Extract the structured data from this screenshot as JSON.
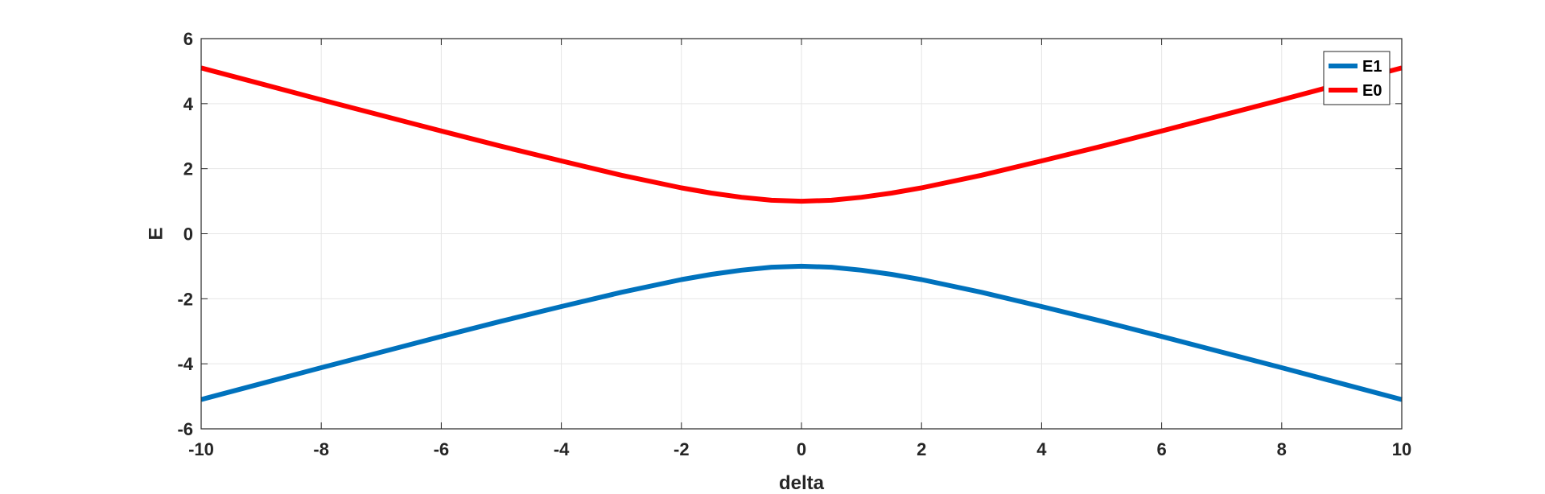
{
  "chart_data": {
    "type": "line",
    "xlabel": "delta",
    "ylabel": "E",
    "xlim": [
      -10,
      10
    ],
    "ylim": [
      -6,
      6
    ],
    "xticks": [
      -10,
      -8,
      -6,
      -4,
      -2,
      0,
      2,
      4,
      6,
      8,
      10
    ],
    "yticks": [
      -6,
      -4,
      -2,
      0,
      2,
      4,
      6
    ],
    "grid": true,
    "legend_position": "top-right",
    "x": [
      -10,
      -9,
      -8,
      -7,
      -6,
      -5,
      -4,
      -3,
      -2,
      -1.5,
      -1,
      -0.5,
      0,
      0.5,
      1,
      1.5,
      2,
      3,
      4,
      5,
      6,
      7,
      8,
      9,
      10
    ],
    "series": [
      {
        "name": "E1",
        "color": "#0072bd",
        "values": [
          -5.1,
          -4.61,
          -4.12,
          -3.64,
          -3.16,
          -2.69,
          -2.24,
          -1.8,
          -1.41,
          -1.25,
          -1.12,
          -1.03,
          -1.0,
          -1.03,
          -1.12,
          -1.25,
          -1.41,
          -1.8,
          -2.24,
          -2.69,
          -3.16,
          -3.64,
          -4.12,
          -4.61,
          -5.1
        ]
      },
      {
        "name": "E0",
        "color": "#ff0000",
        "values": [
          5.1,
          4.61,
          4.12,
          3.64,
          3.16,
          2.69,
          2.24,
          1.8,
          1.41,
          1.25,
          1.12,
          1.03,
          1.0,
          1.03,
          1.12,
          1.25,
          1.41,
          1.8,
          2.24,
          2.69,
          3.16,
          3.64,
          4.12,
          4.61,
          5.1
        ]
      }
    ]
  }
}
